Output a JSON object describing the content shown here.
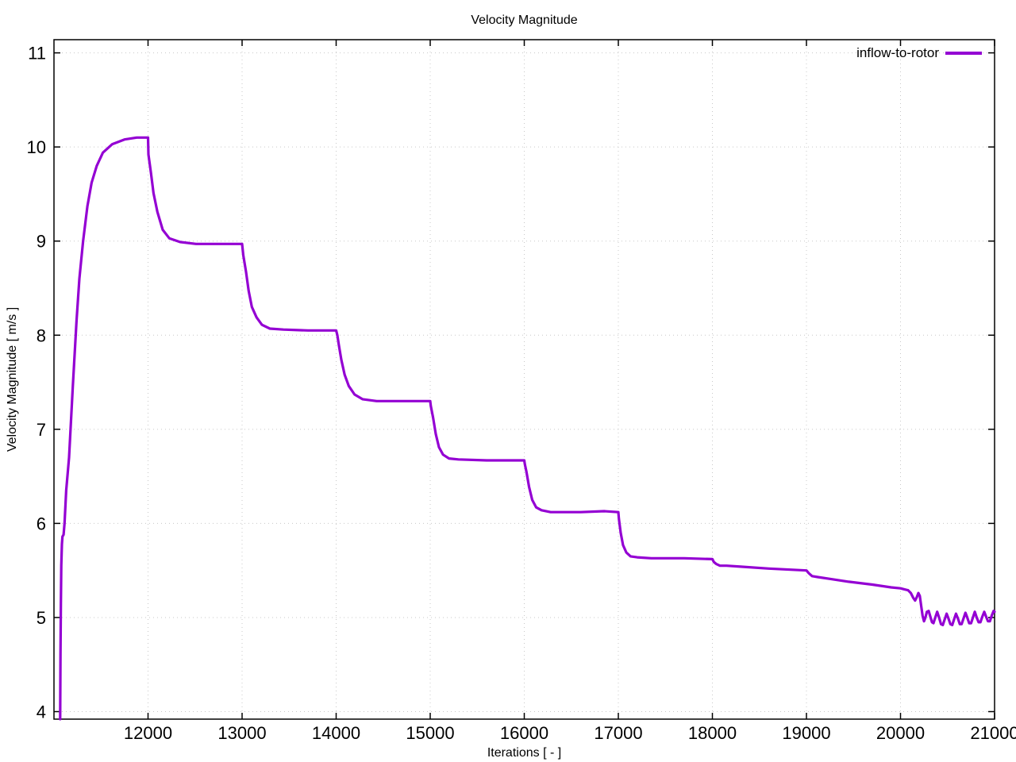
{
  "title": "Velocity Magnitude",
  "axes": {
    "x_label": "Iterations [ - ]",
    "y_label": "Velocity Magnitude [ m/s ]"
  },
  "legend": {
    "label": "inflow-to-rotor"
  },
  "colors": {
    "series": "#9400d3",
    "grid": "#c8c8c8",
    "border": "#000000"
  },
  "chart_data": {
    "type": "line",
    "title": "Velocity Magnitude",
    "xlabel": "Iterations [ - ]",
    "ylabel": "Velocity Magnitude [ m/s ]",
    "xlim": [
      11000,
      21000
    ],
    "ylim": [
      3.92,
      11.14
    ],
    "x_ticks": [
      12000,
      13000,
      14000,
      15000,
      16000,
      17000,
      18000,
      19000,
      20000,
      21000
    ],
    "y_ticks": [
      4,
      5,
      6,
      7,
      8,
      9,
      10,
      11
    ],
    "grid": "dotted",
    "legend_position": "top-right-inside",
    "series": [
      {
        "name": "inflow-to-rotor",
        "color": "#9400d3",
        "points": [
          [
            11066,
            3.92
          ],
          [
            11069,
            4.6
          ],
          [
            11073,
            5.15
          ],
          [
            11078,
            5.55
          ],
          [
            11084,
            5.78
          ],
          [
            11090,
            5.86
          ],
          [
            11102,
            5.88
          ],
          [
            11112,
            6.0
          ],
          [
            11130,
            6.35
          ],
          [
            11160,
            6.7
          ],
          [
            11200,
            7.45
          ],
          [
            11240,
            8.15
          ],
          [
            11270,
            8.6
          ],
          [
            11310,
            9.0
          ],
          [
            11355,
            9.37
          ],
          [
            11400,
            9.62
          ],
          [
            11455,
            9.8
          ],
          [
            11520,
            9.94
          ],
          [
            11620,
            10.03
          ],
          [
            11750,
            10.08
          ],
          [
            11880,
            10.1
          ],
          [
            12000,
            10.1
          ],
          [
            12004,
            9.92
          ],
          [
            12030,
            9.73
          ],
          [
            12058,
            9.51
          ],
          [
            12100,
            9.31
          ],
          [
            12156,
            9.12
          ],
          [
            12226,
            9.03
          ],
          [
            12340,
            8.99
          ],
          [
            12510,
            8.97
          ],
          [
            13000,
            8.97
          ],
          [
            13013,
            8.85
          ],
          [
            13042,
            8.67
          ],
          [
            13070,
            8.47
          ],
          [
            13104,
            8.3
          ],
          [
            13154,
            8.19
          ],
          [
            13211,
            8.11
          ],
          [
            13295,
            8.07
          ],
          [
            13440,
            8.06
          ],
          [
            13700,
            8.05
          ],
          [
            14000,
            8.05
          ],
          [
            14013,
            8.0
          ],
          [
            14028,
            7.9
          ],
          [
            14055,
            7.74
          ],
          [
            14090,
            7.58
          ],
          [
            14134,
            7.46
          ],
          [
            14196,
            7.37
          ],
          [
            14280,
            7.32
          ],
          [
            14430,
            7.3
          ],
          [
            15000,
            7.3
          ],
          [
            15006,
            7.25
          ],
          [
            15031,
            7.12
          ],
          [
            15059,
            6.95
          ],
          [
            15093,
            6.81
          ],
          [
            15137,
            6.73
          ],
          [
            15200,
            6.69
          ],
          [
            15300,
            6.68
          ],
          [
            15600,
            6.67
          ],
          [
            16000,
            6.67
          ],
          [
            16006,
            6.63
          ],
          [
            16023,
            6.55
          ],
          [
            16051,
            6.39
          ],
          [
            16084,
            6.25
          ],
          [
            16127,
            6.17
          ],
          [
            16183,
            6.14
          ],
          [
            16280,
            6.12
          ],
          [
            16600,
            6.12
          ],
          [
            16850,
            6.13
          ],
          [
            17000,
            6.12
          ],
          [
            17006,
            6.05
          ],
          [
            17025,
            5.9
          ],
          [
            17050,
            5.77
          ],
          [
            17085,
            5.69
          ],
          [
            17130,
            5.65
          ],
          [
            17200,
            5.64
          ],
          [
            17350,
            5.63
          ],
          [
            17700,
            5.63
          ],
          [
            18000,
            5.62
          ],
          [
            18015,
            5.59
          ],
          [
            18040,
            5.57
          ],
          [
            18080,
            5.55
          ],
          [
            18150,
            5.55
          ],
          [
            18300,
            5.54
          ],
          [
            18600,
            5.52
          ],
          [
            19000,
            5.5
          ],
          [
            19025,
            5.47
          ],
          [
            19060,
            5.44
          ],
          [
            19120,
            5.43
          ],
          [
            19250,
            5.41
          ],
          [
            19450,
            5.38
          ],
          [
            19700,
            5.35
          ],
          [
            19900,
            5.32
          ],
          [
            20000,
            5.31
          ],
          [
            20040,
            5.3
          ],
          [
            20080,
            5.29
          ],
          [
            20110,
            5.26
          ],
          [
            20135,
            5.21
          ],
          [
            20155,
            5.18
          ],
          [
            20175,
            5.22
          ],
          [
            20190,
            5.26
          ],
          [
            20205,
            5.23
          ],
          [
            20220,
            5.12
          ],
          [
            20235,
            5.02
          ],
          [
            20250,
            4.96
          ],
          [
            20265,
            5.0
          ],
          [
            20280,
            5.06
          ],
          [
            20300,
            5.07
          ],
          [
            20320,
            5.0
          ],
          [
            20335,
            4.95
          ],
          [
            20350,
            4.94
          ],
          [
            20370,
            5.0
          ],
          [
            20390,
            5.06
          ],
          [
            20410,
            5.0
          ],
          [
            20430,
            4.93
          ],
          [
            20450,
            4.92
          ],
          [
            20470,
            4.98
          ],
          [
            20490,
            5.04
          ],
          [
            20510,
            4.99
          ],
          [
            20530,
            4.93
          ],
          [
            20550,
            4.92
          ],
          [
            20570,
            4.98
          ],
          [
            20590,
            5.04
          ],
          [
            20610,
            4.99
          ],
          [
            20630,
            4.93
          ],
          [
            20650,
            4.93
          ],
          [
            20670,
            4.99
          ],
          [
            20690,
            5.05
          ],
          [
            20710,
            5.0
          ],
          [
            20730,
            4.94
          ],
          [
            20750,
            4.94
          ],
          [
            20770,
            5.0
          ],
          [
            20790,
            5.06
          ],
          [
            20810,
            5.0
          ],
          [
            20830,
            4.95
          ],
          [
            20850,
            4.95
          ],
          [
            20870,
            5.01
          ],
          [
            20890,
            5.06
          ],
          [
            20910,
            5.01
          ],
          [
            20930,
            4.96
          ],
          [
            20950,
            4.96
          ],
          [
            20970,
            5.02
          ],
          [
            20990,
            5.07
          ],
          [
            21000,
            5.06
          ]
        ]
      }
    ]
  }
}
